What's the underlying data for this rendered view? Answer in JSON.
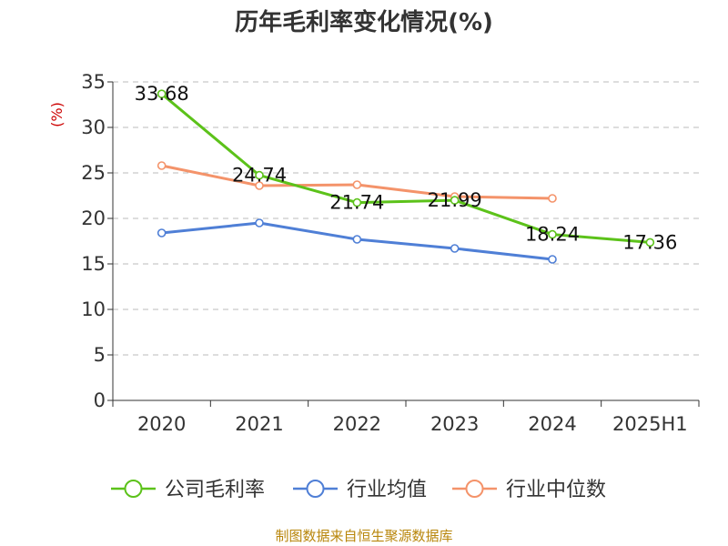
{
  "chart_data": {
    "type": "line",
    "title": "历年毛利率变化情况(%)",
    "unit_label": "(%)",
    "categories": [
      "2020",
      "2021",
      "2022",
      "2023",
      "2024",
      "2025H1"
    ],
    "ylim": [
      0,
      35
    ],
    "yticks": [
      0,
      5,
      10,
      15,
      20,
      25,
      30,
      35
    ],
    "grid": true,
    "legend_position": "bottom",
    "series": [
      {
        "name": "公司毛利率",
        "color": "#5cc21a",
        "values": [
          33.68,
          24.74,
          21.74,
          21.99,
          18.24,
          17.36
        ],
        "labels": [
          "33.68",
          "24.74",
          "21.74",
          "21.99",
          "18.24",
          "17.36"
        ]
      },
      {
        "name": "行业均值",
        "color": "#4f7fd6",
        "values": [
          18.4,
          19.5,
          17.7,
          16.7,
          15.5,
          null
        ]
      },
      {
        "name": "行业中位数",
        "color": "#f4936a",
        "values": [
          25.8,
          23.6,
          23.7,
          22.4,
          22.2,
          null
        ]
      }
    ],
    "source": "制图数据来自恒生聚源数据库"
  }
}
